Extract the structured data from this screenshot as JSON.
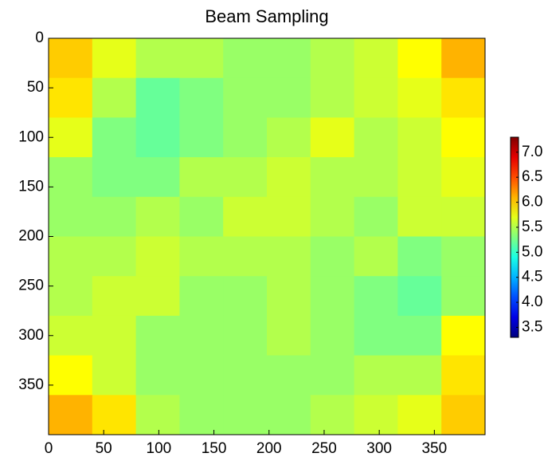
{
  "chart_data": {
    "type": "heatmap",
    "title": "Beam Sampling",
    "colormap": "jet",
    "xlim": [
      0,
      396
    ],
    "ylim": [
      400,
      0
    ],
    "xticks": [
      0,
      50,
      100,
      150,
      200,
      250,
      300,
      350
    ],
    "yticks": [
      0,
      50,
      100,
      150,
      200,
      250,
      300,
      350
    ],
    "z": [
      [
        6.0,
        5.7,
        5.5,
        5.5,
        5.4,
        5.4,
        5.5,
        5.6,
        5.8,
        6.1
      ],
      [
        5.9,
        5.5,
        5.2,
        5.3,
        5.4,
        5.4,
        5.5,
        5.6,
        5.7,
        5.9
      ],
      [
        5.7,
        5.3,
        5.2,
        5.3,
        5.4,
        5.5,
        5.7,
        5.5,
        5.6,
        5.8
      ],
      [
        5.4,
        5.3,
        5.3,
        5.5,
        5.5,
        5.6,
        5.5,
        5.5,
        5.6,
        5.7
      ],
      [
        5.4,
        5.4,
        5.5,
        5.4,
        5.6,
        5.6,
        5.5,
        5.4,
        5.6,
        5.6
      ],
      [
        5.5,
        5.5,
        5.6,
        5.5,
        5.5,
        5.5,
        5.4,
        5.5,
        5.3,
        5.4
      ],
      [
        5.5,
        5.6,
        5.6,
        5.4,
        5.4,
        5.5,
        5.4,
        5.3,
        5.2,
        5.4
      ],
      [
        5.6,
        5.6,
        5.4,
        5.4,
        5.4,
        5.5,
        5.4,
        5.3,
        5.3,
        5.8
      ],
      [
        5.8,
        5.6,
        5.4,
        5.4,
        5.4,
        5.4,
        5.4,
        5.5,
        5.5,
        5.9
      ],
      [
        6.1,
        5.9,
        5.5,
        5.4,
        5.4,
        5.4,
        5.5,
        5.6,
        5.7,
        6.0
      ]
    ],
    "clim": [
      3.3,
      7.3
    ],
    "colorbar_ticks": [
      3.5,
      {
        "value": 4,
        "label": "4.0"
      },
      4.5,
      {
        "value": 5,
        "label": "5.0"
      },
      5.5,
      {
        "value": 6,
        "label": "6.0"
      },
      6.5,
      {
        "value": 7,
        "label": "7.0"
      }
    ]
  }
}
